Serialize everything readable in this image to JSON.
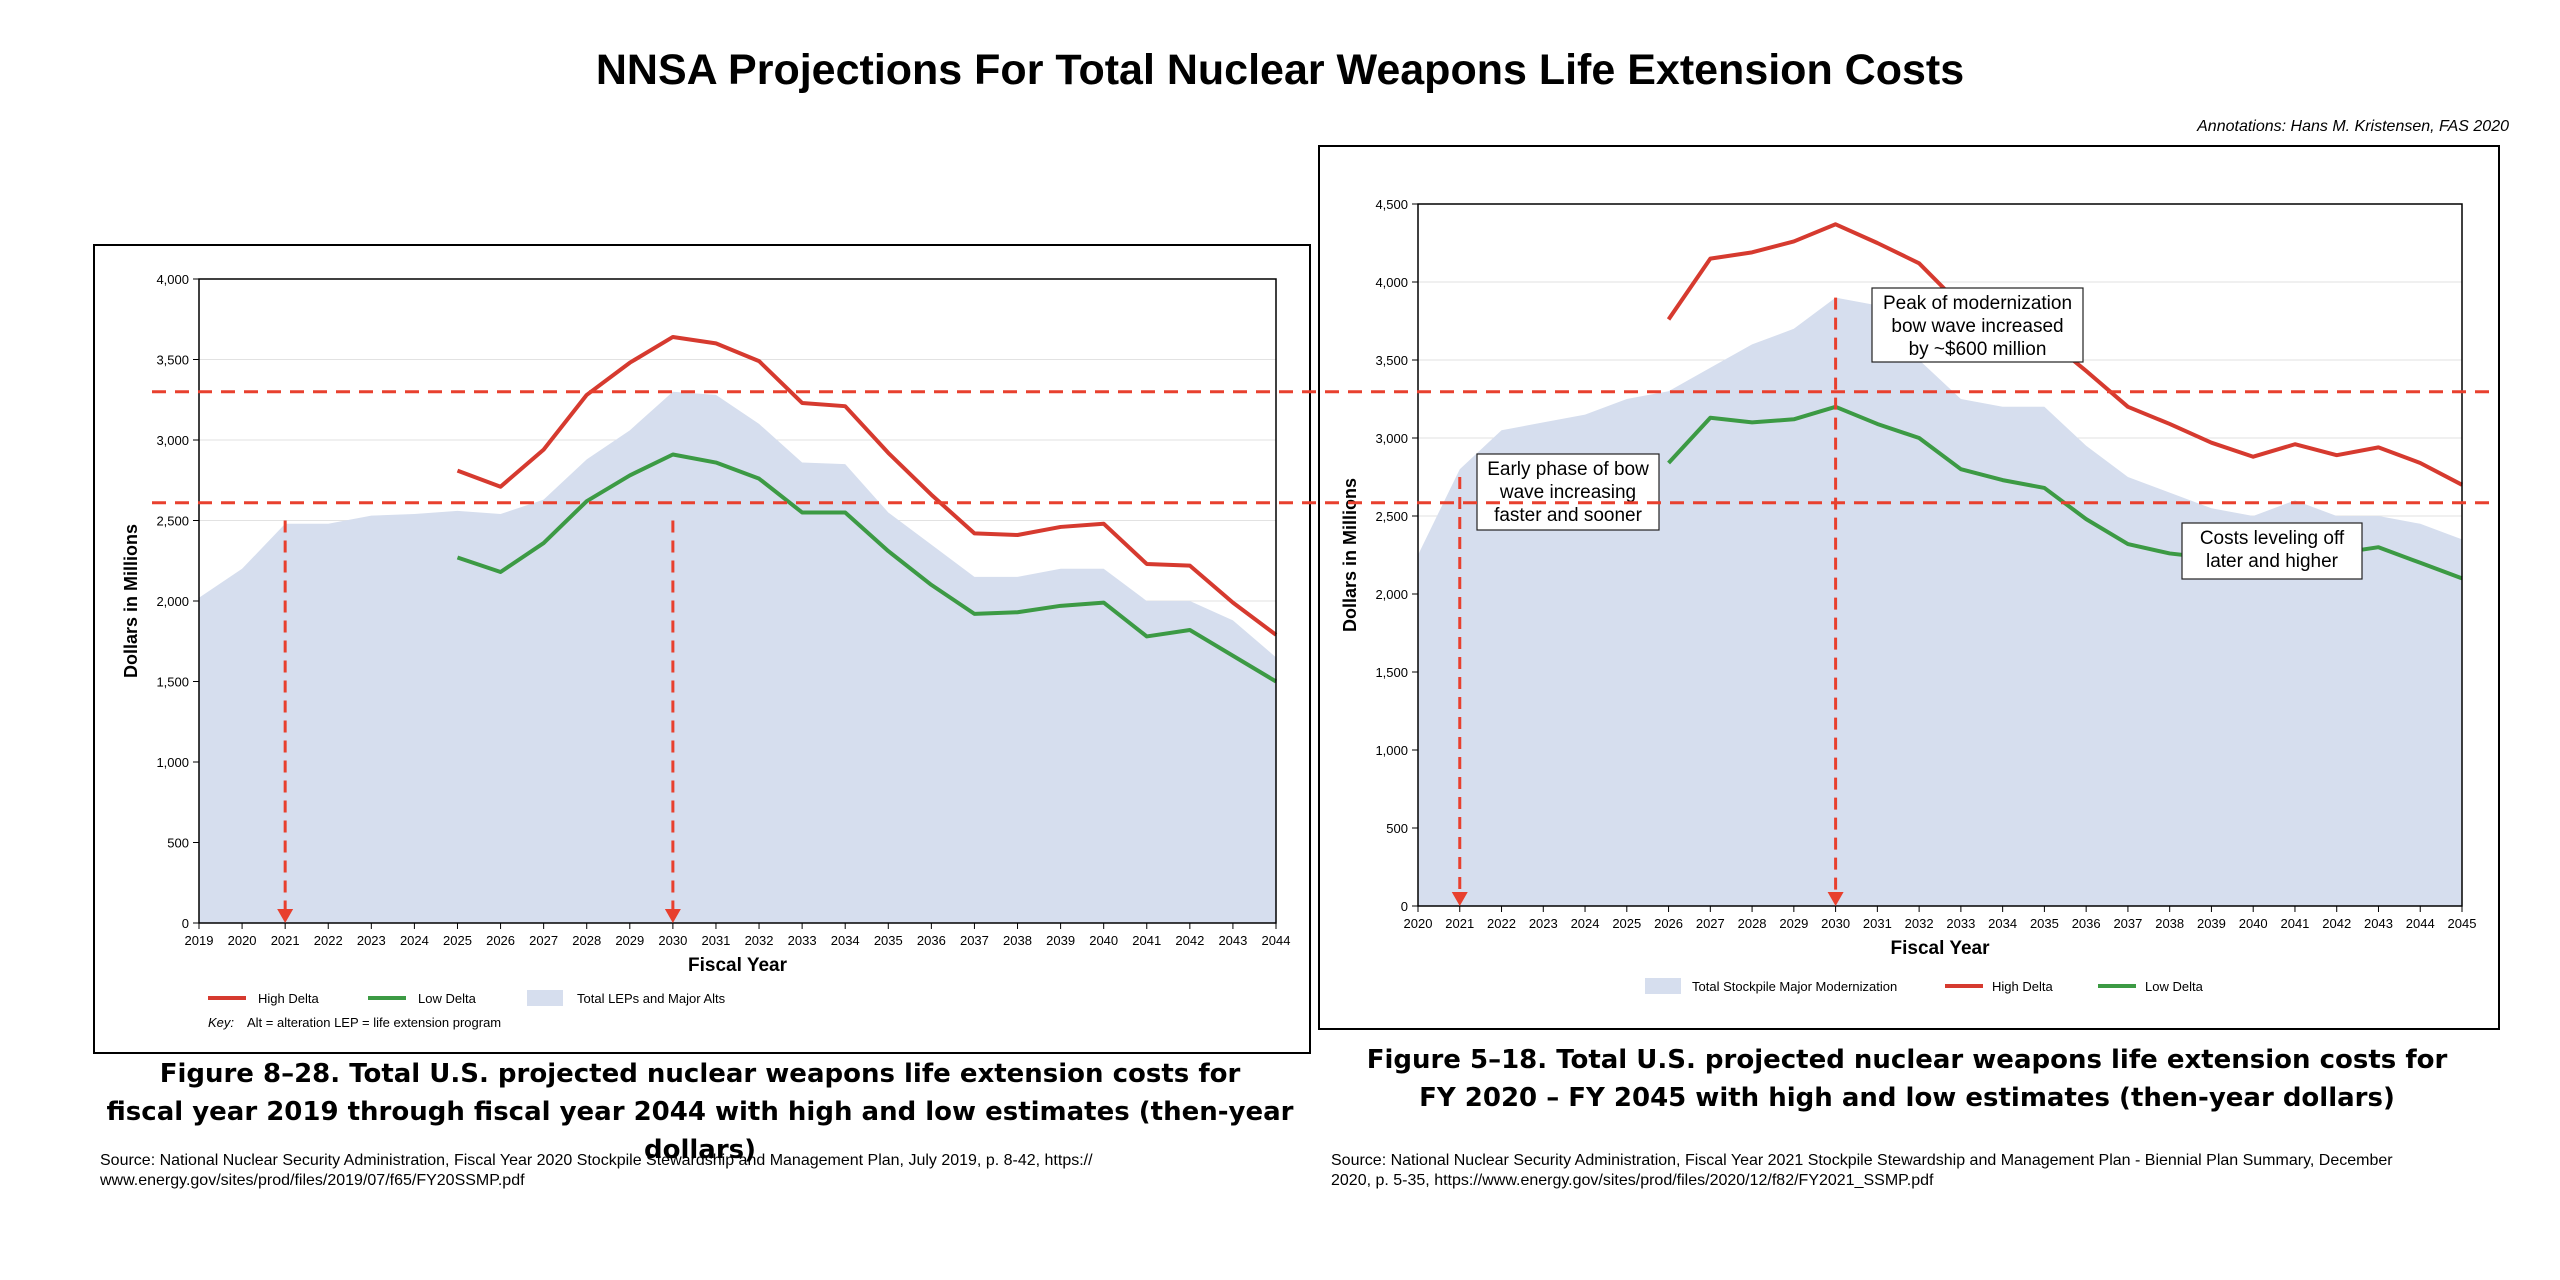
{
  "title": "NNSA Projections For Total Nuclear Weapons Life Extension Costs",
  "annotation_credit": "Annotations: Hans M. Kristensen, FAS 2020",
  "colors": {
    "high_delta": "#d63a2f",
    "low_delta": "#3c9a44",
    "area_fill": "#d6deee",
    "annotation_arrow": "#e8402e"
  },
  "left_caption": {
    "line1": "Figure 8–28.  Total U.S. projected nuclear weapons life extension costs for",
    "line2": "fiscal year 2019 through fiscal year 2044 with high and low estimates (then-year dollars)"
  },
  "right_caption": {
    "line1": "Figure 5–18.  Total U.S. projected nuclear weapons life extension costs for",
    "line2": "FY 2020 – FY 2045 with high and low estimates (then-year dollars)"
  },
  "left_source": {
    "line1": "Source: National Nuclear Security Administration, Fiscal Year 2020 Stockpile Stewardship and Management Plan, July 2019, p. 8-42, https://",
    "line2": "www.energy.gov/sites/prod/files/2019/07/f65/FY20SSMP.pdf"
  },
  "right_source": {
    "line1": "Source: National Nuclear Security Administration, Fiscal Year 2021 Stockpile Stewardship and Management Plan - Biennial Plan Summary, December",
    "line2": "2020, p. 5-35, https://www.energy.gov/sites/prod/files/2020/12/f82/FY2021_SSMP.pdf"
  },
  "reference_lines": [
    3300,
    2610
  ],
  "chart_data": [
    {
      "type": "area",
      "xlabel": "Fiscal Year",
      "ylabel": "Dollars in Millions",
      "ylim": [
        0,
        4000
      ],
      "yticks": [
        0,
        500,
        1000,
        1500,
        2000,
        2500,
        3000,
        3500,
        4000
      ],
      "ytick_labels": [
        "0",
        "500",
        "1,000",
        "1,500",
        "2,000",
        "2,500",
        "3,000",
        "3,500",
        "4,000"
      ],
      "x": [
        "2019",
        "2020",
        "2021",
        "2022",
        "2023",
        "2024",
        "2025",
        "2026",
        "2027",
        "2028",
        "2029",
        "2030",
        "2031",
        "2032",
        "2033",
        "2034",
        "2035",
        "2036",
        "2037",
        "2038",
        "2039",
        "2040",
        "2041",
        "2042",
        "2043",
        "2044"
      ],
      "grid": "horizontal",
      "series": [
        {
          "name": "Total LEPs and Major Alts",
          "kind": "area",
          "values": [
            2020,
            2200,
            2480,
            2480,
            2530,
            2540,
            2560,
            2540,
            2630,
            2880,
            3060,
            3300,
            3280,
            3100,
            2860,
            2850,
            2550,
            2350,
            2150,
            2150,
            2200,
            2200,
            2000,
            2000,
            1880,
            1650
          ]
        },
        {
          "name": "High Delta",
          "kind": "line",
          "values": [
            null,
            null,
            null,
            null,
            null,
            null,
            2810,
            2710,
            2940,
            3280,
            3480,
            3640,
            3600,
            3490,
            3230,
            3210,
            2920,
            2660,
            2420,
            2410,
            2460,
            2480,
            2230,
            2220,
            1990,
            1790
          ]
        },
        {
          "name": "Low Delta",
          "kind": "line",
          "values": [
            null,
            null,
            null,
            null,
            null,
            null,
            2270,
            2180,
            2360,
            2620,
            2780,
            2910,
            2860,
            2760,
            2550,
            2550,
            2310,
            2100,
            1920,
            1930,
            1970,
            1990,
            1780,
            1820,
            1660,
            1500
          ]
        }
      ],
      "legend": [
        "High Delta",
        "Low Delta",
        "Total LEPs and Major Alts"
      ],
      "legend_position": "bottom",
      "key_label": "Key:",
      "key_text": "Alt = alteration      LEP = life extension program",
      "arrows_at": [
        "2021",
        "2030"
      ]
    },
    {
      "type": "area",
      "xlabel": "Fiscal Year",
      "ylabel": "Dollars in Millions",
      "ylim": [
        0,
        4500
      ],
      "yticks": [
        0,
        500,
        1000,
        1500,
        2000,
        2500,
        3000,
        3500,
        4000,
        4500
      ],
      "ytick_labels": [
        "0",
        "500",
        "1,000",
        "1,500",
        "2,000",
        "2,500",
        "3,000",
        "3,500",
        "4,000",
        "4,500"
      ],
      "x": [
        "2020",
        "2021",
        "2022",
        "2023",
        "2024",
        "2025",
        "2026",
        "2027",
        "2028",
        "2029",
        "2030",
        "2031",
        "2032",
        "2033",
        "2034",
        "2035",
        "2036",
        "2037",
        "2038",
        "2039",
        "2040",
        "2041",
        "2042",
        "2043",
        "2044",
        "2045"
      ],
      "grid": "horizontal",
      "series": [
        {
          "name": "Total Stockpile Major Modernization",
          "kind": "area",
          "values": [
            2250,
            2800,
            3050,
            3100,
            3150,
            3250,
            3300,
            3450,
            3600,
            3700,
            3900,
            3850,
            3500,
            3250,
            3200,
            3200,
            2950,
            2750,
            2650,
            2550,
            2500,
            2600,
            2500,
            2500,
            2450,
            2350
          ]
        },
        {
          "name": "High Delta",
          "kind": "line",
          "values": [
            null,
            null,
            null,
            null,
            null,
            null,
            3760,
            4150,
            4190,
            4260,
            4370,
            4250,
            4120,
            3850,
            3690,
            3650,
            3430,
            3200,
            3090,
            2970,
            2880,
            2960,
            2890,
            2940,
            2840,
            2700
          ]
        },
        {
          "name": "Low Delta",
          "kind": "line",
          "values": [
            null,
            null,
            null,
            null,
            null,
            null,
            2840,
            3130,
            3100,
            3120,
            3200,
            3090,
            3000,
            2800,
            2730,
            2680,
            2480,
            2320,
            2260,
            2230,
            2240,
            2250,
            2260,
            2300,
            2200,
            2100
          ]
        }
      ],
      "legend": [
        "Total Stockpile Major Modernization",
        "High Delta",
        "Low Delta"
      ],
      "legend_position": "bottom",
      "arrows_at": [
        "2021",
        "2030"
      ],
      "annotations": [
        {
          "lines": [
            "Early phase of bow",
            "wave increasing",
            "faster and sooner"
          ]
        },
        {
          "lines": [
            "Peak of modernization",
            "bow wave increased",
            "by ~$600 million"
          ]
        },
        {
          "lines": [
            "Costs leveling off",
            "later and higher"
          ]
        }
      ]
    }
  ]
}
